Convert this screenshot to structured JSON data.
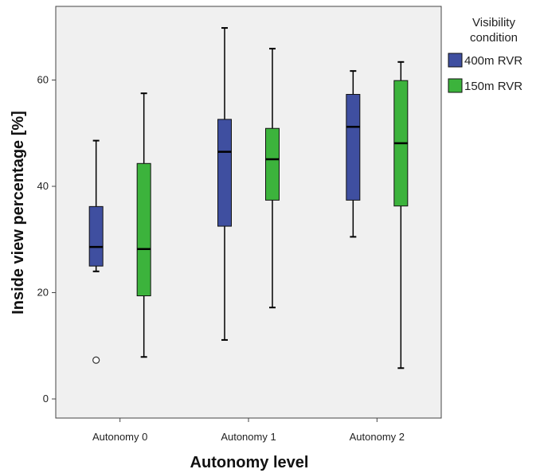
{
  "chart_data": {
    "type": "boxplot",
    "xlabel": "Autonomy level",
    "ylabel": "Inside view percentage [%]",
    "ylim": [
      -3,
      74
    ],
    "yticks": [
      0,
      20,
      40,
      60
    ],
    "categories": [
      "Autonomy 0",
      "Autonomy 1",
      "Autonomy 2"
    ],
    "legend": {
      "title_lines": [
        "Visibility",
        "condition"
      ],
      "placement": "right"
    },
    "series": [
      {
        "name": "400m RVR",
        "color": "#3f4fa0",
        "boxes": [
          {
            "min": 24,
            "q1": 25,
            "median": 28.6,
            "q3": 36.2,
            "max": 48.6,
            "outliers": [
              7.3
            ]
          },
          {
            "min": 11.1,
            "q1": 32.5,
            "median": 46.5,
            "q3": 52.6,
            "max": 69.8,
            "outliers": []
          },
          {
            "min": 30.5,
            "q1": 37.4,
            "median": 51.2,
            "q3": 57.3,
            "max": 61.7,
            "outliers": []
          }
        ]
      },
      {
        "name": "150m RVR",
        "color": "#3cb33c",
        "boxes": [
          {
            "min": 7.9,
            "q1": 19.4,
            "median": 28.2,
            "q3": 44.3,
            "max": 57.5,
            "outliers": []
          },
          {
            "min": 17.2,
            "q1": 37.4,
            "median": 45.1,
            "q3": 50.9,
            "max": 65.9,
            "outliers": []
          },
          {
            "min": 5.8,
            "q1": 36.3,
            "median": 48.1,
            "q3": 59.9,
            "max": 63.4,
            "outliers": []
          }
        ]
      }
    ]
  }
}
